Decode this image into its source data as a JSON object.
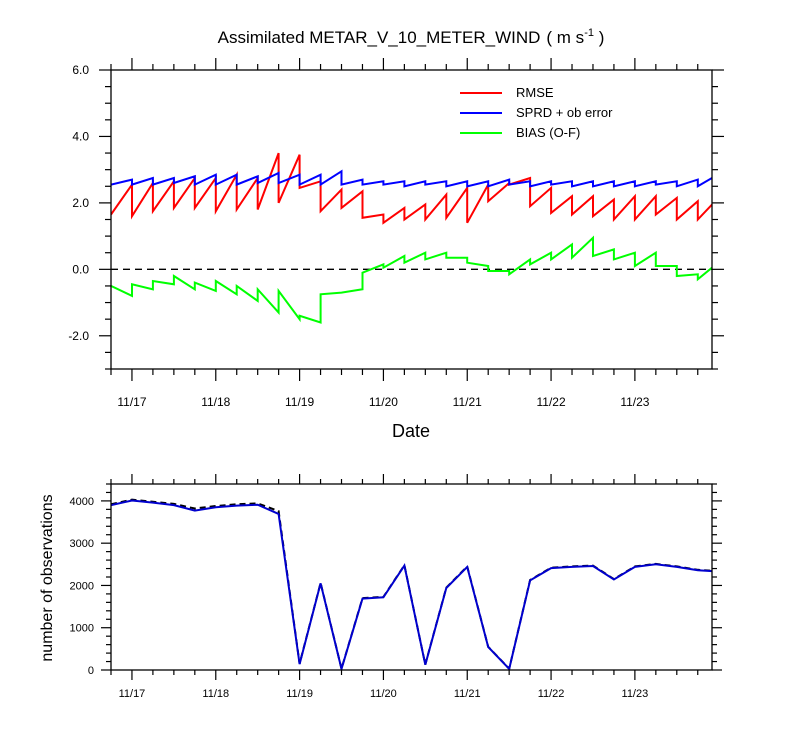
{
  "chart_data": [
    {
      "type": "line",
      "title": "Assimilated METAR_V_10_METER_WIND",
      "title_units_main": "( m s",
      "title_units_sup": "-1",
      "title_units_end": " )",
      "xlabel": "Date",
      "ylabel": "",
      "xlim": [
        0,
        7.17
      ],
      "ylim": [
        -3.0,
        6.0
      ],
      "xtick_values": [
        0.25,
        1.25,
        2.25,
        3.25,
        4.25,
        5.25,
        6.25
      ],
      "xtick_labels": [
        "11/17",
        "11/18",
        "11/19",
        "11/20",
        "11/21",
        "11/22",
        "11/23"
      ],
      "ytick_values": [
        -2,
        0,
        2,
        4,
        6
      ],
      "ytick_labels": [
        "-2.0",
        "0.0",
        "2.0",
        "4.0",
        "6.0"
      ],
      "zero_line": true,
      "legend_position": "top-right",
      "series": [
        {
          "name": "RMSE",
          "color": "#ff0000",
          "x": [
            0.0,
            0.25,
            0.25,
            0.5,
            0.5,
            0.75,
            0.75,
            1.0,
            1.0,
            1.25,
            1.25,
            1.5,
            1.5,
            1.75,
            1.75,
            2.0,
            2.0,
            2.25,
            2.25,
            2.5,
            2.5,
            2.75,
            2.75,
            3.0,
            3.0,
            3.25,
            3.25,
            3.5,
            3.5,
            3.75,
            3.75,
            4.0,
            4.0,
            4.25,
            4.25,
            4.5,
            4.5,
            4.75,
            4.75,
            5.0,
            5.0,
            5.25,
            5.25,
            5.5,
            5.5,
            5.75,
            5.75,
            6.0,
            6.0,
            6.25,
            6.25,
            6.5,
            6.5,
            6.75,
            6.75,
            7.0,
            7.0,
            7.17
          ],
          "y": [
            1.65,
            2.55,
            1.6,
            2.6,
            1.75,
            2.65,
            1.85,
            2.75,
            1.85,
            2.75,
            1.75,
            2.85,
            1.8,
            2.75,
            1.8,
            3.5,
            2.0,
            3.45,
            2.45,
            2.65,
            1.75,
            2.4,
            1.85,
            2.35,
            1.55,
            1.65,
            1.4,
            1.85,
            1.5,
            1.95,
            1.5,
            2.25,
            1.55,
            2.45,
            1.4,
            2.55,
            2.05,
            2.6,
            2.55,
            2.75,
            1.9,
            2.45,
            1.7,
            2.2,
            1.65,
            2.2,
            1.6,
            2.1,
            1.5,
            2.2,
            1.5,
            2.2,
            1.65,
            2.15,
            1.5,
            2.05,
            1.5,
            1.95
          ]
        },
        {
          "name": "SPRD + ob error",
          "color": "#0000ff",
          "x": [
            0.0,
            0.25,
            0.25,
            0.5,
            0.5,
            0.75,
            0.75,
            1.0,
            1.0,
            1.25,
            1.25,
            1.5,
            1.5,
            1.75,
            1.75,
            2.0,
            2.0,
            2.25,
            2.25,
            2.5,
            2.5,
            2.75,
            2.75,
            3.0,
            3.0,
            3.25,
            3.25,
            3.5,
            3.5,
            3.75,
            3.75,
            4.0,
            4.0,
            4.25,
            4.25,
            4.5,
            4.5,
            4.75,
            4.75,
            5.0,
            5.0,
            5.25,
            5.25,
            5.5,
            5.5,
            5.75,
            5.75,
            6.0,
            6.0,
            6.25,
            6.25,
            6.5,
            6.5,
            6.75,
            6.75,
            7.0,
            7.0,
            7.17
          ],
          "y": [
            2.55,
            2.7,
            2.55,
            2.75,
            2.55,
            2.75,
            2.6,
            2.8,
            2.55,
            2.85,
            2.55,
            2.85,
            2.55,
            2.8,
            2.6,
            2.9,
            2.6,
            2.85,
            2.55,
            2.85,
            2.55,
            2.95,
            2.55,
            2.7,
            2.55,
            2.65,
            2.55,
            2.65,
            2.5,
            2.65,
            2.55,
            2.65,
            2.5,
            2.65,
            2.5,
            2.65,
            2.5,
            2.7,
            2.55,
            2.65,
            2.5,
            2.65,
            2.55,
            2.65,
            2.5,
            2.65,
            2.5,
            2.65,
            2.5,
            2.65,
            2.5,
            2.65,
            2.55,
            2.65,
            2.5,
            2.7,
            2.5,
            2.75
          ]
        },
        {
          "name": "BIAS (O-F)",
          "color": "#00ff00",
          "x": [
            0.0,
            0.25,
            0.25,
            0.5,
            0.5,
            0.75,
            0.75,
            1.0,
            1.0,
            1.25,
            1.25,
            1.5,
            1.5,
            1.75,
            1.75,
            2.0,
            2.0,
            2.25,
            2.25,
            2.5,
            2.5,
            2.75,
            2.75,
            3.0,
            3.0,
            3.25,
            3.25,
            3.5,
            3.5,
            3.75,
            3.75,
            4.0,
            4.0,
            4.25,
            4.25,
            4.5,
            4.5,
            4.75,
            4.75,
            5.0,
            5.0,
            5.25,
            5.25,
            5.5,
            5.5,
            5.75,
            5.75,
            6.0,
            6.0,
            6.25,
            6.25,
            6.5,
            6.5,
            6.75,
            6.75,
            7.0,
            7.0,
            7.17
          ],
          "y": [
            -0.5,
            -0.8,
            -0.45,
            -0.6,
            -0.35,
            -0.45,
            -0.2,
            -0.6,
            -0.4,
            -0.65,
            -0.35,
            -0.75,
            -0.5,
            -0.95,
            -0.6,
            -1.3,
            -0.65,
            -1.5,
            -1.4,
            -1.6,
            -0.75,
            -0.7,
            -0.7,
            -0.6,
            -0.1,
            0.15,
            0.05,
            0.4,
            0.2,
            0.5,
            0.3,
            0.5,
            0.35,
            0.35,
            0.2,
            0.1,
            -0.05,
            -0.05,
            -0.15,
            0.3,
            0.15,
            0.5,
            0.3,
            0.75,
            0.35,
            0.95,
            0.4,
            0.6,
            0.3,
            0.5,
            0.1,
            0.5,
            0.1,
            0.1,
            -0.2,
            -0.15,
            -0.3,
            0.05
          ]
        }
      ]
    },
    {
      "type": "line",
      "title": "",
      "xlabel": "",
      "ylabel": "number of observations",
      "xlim": [
        0,
        7.17
      ],
      "ylim": [
        0,
        4400
      ],
      "xtick_values": [
        0.25,
        1.25,
        2.25,
        3.25,
        4.25,
        5.25,
        6.25
      ],
      "xtick_labels": [
        "11/17",
        "11/18",
        "11/19",
        "11/20",
        "11/21",
        "11/22",
        "11/23"
      ],
      "ytick_values": [
        0,
        1000,
        2000,
        3000,
        4000
      ],
      "ytick_labels": [
        "0",
        "1000",
        "2000",
        "3000",
        "4000"
      ],
      "series": [
        {
          "name": "",
          "color": "#000000",
          "dashed": true,
          "x": [
            0.0,
            0.25,
            0.5,
            0.75,
            1.0,
            1.25,
            1.5,
            1.75,
            2.0,
            2.25,
            2.5,
            2.75,
            3.0,
            3.25,
            3.5,
            3.75,
            4.0,
            4.25,
            4.5,
            4.75,
            5.0,
            5.25,
            5.5,
            5.75,
            6.0,
            6.25,
            6.5,
            6.75,
            7.0,
            7.17
          ],
          "y": [
            3920,
            4030,
            3980,
            3930,
            3820,
            3880,
            3920,
            3940,
            3760,
            150,
            2060,
            30,
            1700,
            1730,
            2480,
            130,
            1950,
            2450,
            550,
            30,
            2130,
            2420,
            2450,
            2470,
            2150,
            2450,
            2510,
            2450,
            2370,
            2350
          ]
        },
        {
          "name": "",
          "color": "#0000cd",
          "dashed": false,
          "x": [
            0.0,
            0.25,
            0.5,
            0.75,
            1.0,
            1.25,
            1.5,
            1.75,
            2.0,
            2.25,
            2.5,
            2.75,
            3.0,
            3.25,
            3.5,
            3.75,
            4.0,
            4.25,
            4.5,
            4.75,
            5.0,
            5.25,
            5.5,
            5.75,
            6.0,
            6.25,
            6.5,
            6.75,
            7.0,
            7.17
          ],
          "y": [
            3900,
            4010,
            3960,
            3900,
            3770,
            3850,
            3890,
            3910,
            3690,
            140,
            2050,
            25,
            1690,
            1720,
            2470,
            125,
            1940,
            2440,
            545,
            25,
            2120,
            2410,
            2440,
            2460,
            2140,
            2440,
            2500,
            2440,
            2360,
            2340
          ]
        }
      ]
    }
  ]
}
